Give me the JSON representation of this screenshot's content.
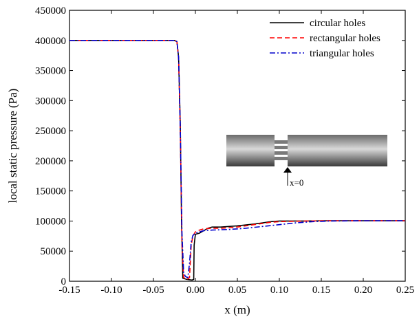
{
  "chart_data": {
    "type": "line",
    "title": "",
    "xlabel": "x (m)",
    "ylabel": "local static pressure (Pa)",
    "xlim": [
      -0.15,
      0.25
    ],
    "ylim": [
      0,
      450000
    ],
    "x_ticks": [
      -0.15,
      -0.1,
      -0.05,
      0.0,
      0.05,
      0.1,
      0.15,
      0.2,
      0.25
    ],
    "x_tick_labels": [
      "-0.15",
      "-0.10",
      "-0.05",
      "0.00",
      "0.05",
      "0.10",
      "0.15",
      "0.20",
      "0.25"
    ],
    "y_ticks": [
      0,
      50000,
      100000,
      150000,
      200000,
      250000,
      300000,
      350000,
      400000,
      450000
    ],
    "y_tick_labels": [
      "0",
      "50000",
      "100000",
      "150000",
      "200000",
      "250000",
      "300000",
      "350000",
      "400000",
      "450000"
    ],
    "grid": false,
    "legend_position": "top-right",
    "series": [
      {
        "name": "circular holes",
        "color": "#000000",
        "dash": "solid",
        "points": [
          [
            -0.15,
            400000
          ],
          [
            -0.025,
            400000
          ],
          [
            -0.022,
            398000
          ],
          [
            -0.02,
            372000
          ],
          [
            -0.018,
            260000
          ],
          [
            -0.0165,
            100000
          ],
          [
            -0.015,
            5000
          ],
          [
            -0.01,
            3000
          ],
          [
            -0.004,
            2000
          ],
          [
            -0.002,
            3000
          ],
          [
            -0.0015,
            60000
          ],
          [
            0.0,
            78000
          ],
          [
            0.005,
            80000
          ],
          [
            0.01,
            84000
          ],
          [
            0.015,
            88000
          ],
          [
            0.02,
            90000
          ],
          [
            0.03,
            90000
          ],
          [
            0.05,
            92000
          ],
          [
            0.07,
            95000
          ],
          [
            0.09,
            99000
          ],
          [
            0.1,
            100000
          ],
          [
            0.13,
            100000
          ],
          [
            0.16,
            100500
          ],
          [
            0.2,
            100500
          ],
          [
            0.25,
            100500
          ]
        ]
      },
      {
        "name": "rectangular holes",
        "color": "#ff0000",
        "dash": "dashed",
        "points": [
          [
            -0.15,
            400000
          ],
          [
            -0.025,
            400000
          ],
          [
            -0.022,
            398000
          ],
          [
            -0.02,
            370000
          ],
          [
            -0.018,
            250000
          ],
          [
            -0.016,
            60000
          ],
          [
            -0.014,
            6000
          ],
          [
            -0.01,
            3000
          ],
          [
            -0.007,
            6000
          ],
          [
            -0.005,
            60000
          ],
          [
            -0.003,
            75000
          ],
          [
            0.0,
            82000
          ],
          [
            0.005,
            85000
          ],
          [
            0.01,
            87000
          ],
          [
            0.02,
            88000
          ],
          [
            0.03,
            88000
          ],
          [
            0.05,
            90000
          ],
          [
            0.07,
            94000
          ],
          [
            0.09,
            98000
          ],
          [
            0.1,
            99000
          ],
          [
            0.13,
            100000
          ],
          [
            0.16,
            100500
          ],
          [
            0.2,
            100500
          ],
          [
            0.25,
            100500
          ]
        ]
      },
      {
        "name": "triangular holes",
        "color": "#0000cc",
        "dash": "dashdot",
        "points": [
          [
            -0.15,
            400000
          ],
          [
            -0.025,
            400000
          ],
          [
            -0.022,
            398000
          ],
          [
            -0.02,
            371000
          ],
          [
            -0.018,
            255000
          ],
          [
            -0.016,
            80000
          ],
          [
            -0.014,
            15000
          ],
          [
            -0.012,
            8000
          ],
          [
            -0.009,
            6000
          ],
          [
            -0.007,
            30000
          ],
          [
            -0.005,
            65000
          ],
          [
            -0.003,
            76000
          ],
          [
            0.0,
            80000
          ],
          [
            0.005,
            82000
          ],
          [
            0.01,
            84000
          ],
          [
            0.02,
            85000
          ],
          [
            0.04,
            86000
          ],
          [
            0.06,
            88000
          ],
          [
            0.08,
            91000
          ],
          [
            0.1,
            94000
          ],
          [
            0.12,
            97000
          ],
          [
            0.14,
            99000
          ],
          [
            0.16,
            100000
          ],
          [
            0.2,
            100500
          ],
          [
            0.25,
            100500
          ]
        ]
      }
    ],
    "inset": {
      "annotation": "x=0"
    }
  }
}
